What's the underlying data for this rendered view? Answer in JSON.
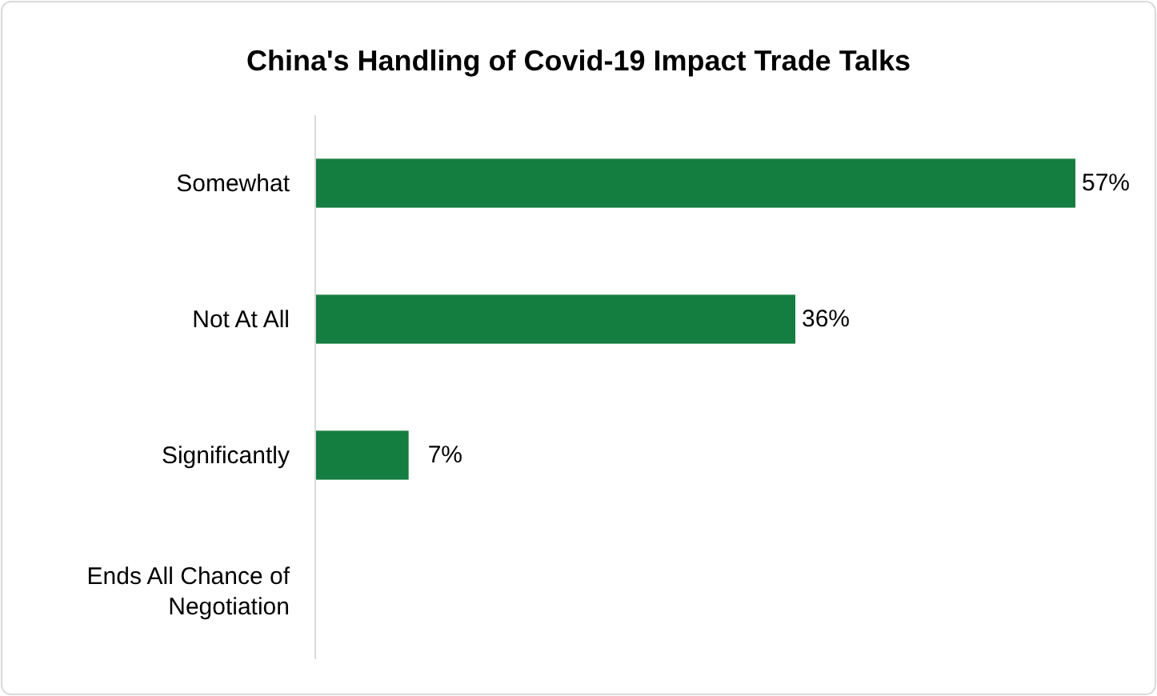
{
  "chart_data": {
    "type": "bar",
    "orientation": "horizontal",
    "title": "China's Handling of Covid-19 Impact Trade Talks",
    "categories": [
      "Somewhat",
      "Not At All",
      "Significantly",
      "Ends All Chance of Negotiation"
    ],
    "values": [
      57,
      36,
      7,
      0
    ],
    "value_labels": [
      "57%",
      "36%",
      "7%",
      null
    ],
    "color": "#137e3f"
  }
}
